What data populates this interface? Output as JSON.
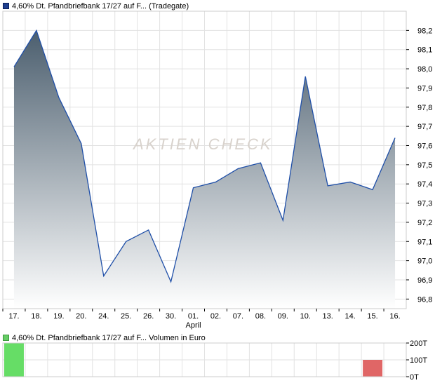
{
  "legend_main": "4,60% Dt. Pfandbriefbank 17/27 auf F... (Tradegate)",
  "legend_volume": "4,60% Dt. Pfandbriefbank 17/27 auf F... Volumen in Euro",
  "watermark": "AKTIEN CHECK",
  "colors": {
    "line": "#1f4fa8",
    "fill_top": "#4b5e6e",
    "fill_bottom": "#ffffff",
    "grid": "#e2e2e2",
    "volume_up": "#66dd66",
    "volume_down": "#e06666"
  },
  "chart_data": [
    {
      "type": "area",
      "title": "4,60% Dt. Pfandbriefbank 17/27 auf F... (Tradegate)",
      "x": [
        "17.",
        "18.",
        "19.",
        "20.",
        "24.",
        "25.",
        "26.",
        "30.",
        "01.",
        "02.",
        "07.",
        "08.",
        "09.",
        "10.",
        "13.",
        "14.",
        "15.",
        "16."
      ],
      "x_sublabel": {
        "index": 8,
        "text": "April"
      },
      "values": [
        98.01,
        98.2,
        97.85,
        97.61,
        96.92,
        97.1,
        97.16,
        96.89,
        97.38,
        97.41,
        97.48,
        97.51,
        97.21,
        97.96,
        97.39,
        97.41,
        97.37,
        97.64
      ],
      "ylim": [
        96.75,
        98.3
      ],
      "yticks": [
        "96,8",
        "96,9",
        "97,0",
        "97,1",
        "97,2",
        "97,3",
        "97,4",
        "97,5",
        "97,6",
        "97,7",
        "97,8",
        "97,9",
        "98,0",
        "98,1",
        "98,2"
      ],
      "ytick_values": [
        96.8,
        96.9,
        97.0,
        97.1,
        97.2,
        97.3,
        97.4,
        97.5,
        97.6,
        97.7,
        97.8,
        97.9,
        98.0,
        98.1,
        98.2
      ],
      "grid": true
    },
    {
      "type": "bar",
      "title": "4,60% Dt. Pfandbriefbank 17/27 auf F... Volumen in Euro",
      "x": [
        "17.",
        "18.",
        "19.",
        "20.",
        "24.",
        "25.",
        "26.",
        "30.",
        "01.",
        "02.",
        "07.",
        "08.",
        "09.",
        "10.",
        "13.",
        "14.",
        "15.",
        "16."
      ],
      "values": [
        200,
        0,
        0,
        0,
        0,
        0,
        0,
        0,
        0,
        0,
        0,
        0,
        0,
        0,
        0,
        0,
        100,
        0
      ],
      "bar_colors": [
        "up",
        null,
        null,
        null,
        null,
        null,
        null,
        null,
        null,
        null,
        null,
        null,
        null,
        null,
        null,
        null,
        "down",
        null
      ],
      "unit": "T",
      "ylim": [
        0,
        200
      ],
      "yticks": [
        "200T",
        "100T",
        "0T"
      ],
      "ytick_values": [
        200,
        100,
        0
      ],
      "grid": true
    }
  ]
}
